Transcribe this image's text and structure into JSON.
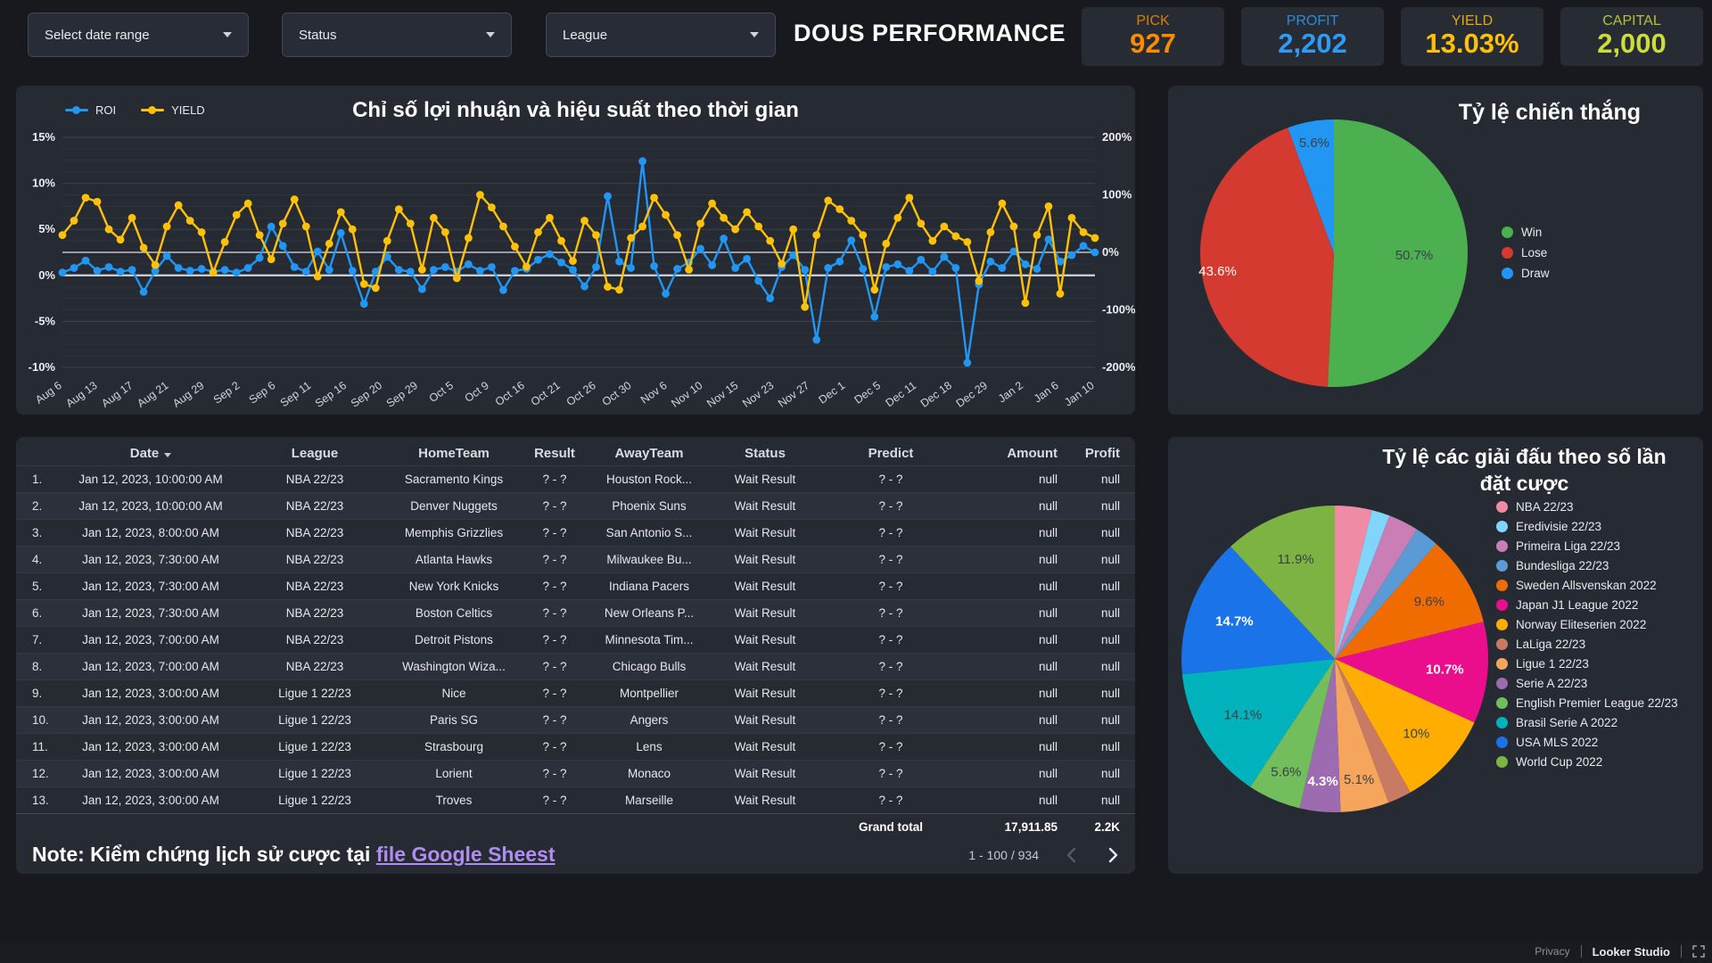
{
  "filters": [
    {
      "label": "Select date range"
    },
    {
      "label": "Status"
    },
    {
      "label": "League"
    }
  ],
  "header": {
    "title": "DOUS PERFORMANCE"
  },
  "kpis": [
    {
      "label": "PICK",
      "value": "927",
      "color": "#FB8C00"
    },
    {
      "label": "PROFIT",
      "value": "2,202",
      "color": "#2E9BF5"
    },
    {
      "label": "YIELD",
      "value": "13.03%",
      "color": "#FFC107"
    },
    {
      "label": "CAPITAL",
      "value": "2,000",
      "color": "#CDDC39"
    }
  ],
  "chart_data": [
    {
      "type": "line",
      "title": "Chỉ số lợi nhuận và hiệu suất theo thời gian",
      "legend_position": "top-left",
      "grid": true,
      "x_tick_labels": [
        "Aug 6",
        "Aug 13",
        "Aug 17",
        "Aug 21",
        "Aug 29",
        "Sep 2",
        "Sep 6",
        "Sep 11",
        "Sep 16",
        "Sep 20",
        "Sep 29",
        "Oct 5",
        "Oct 9",
        "Oct 16",
        "Oct 21",
        "Oct 26",
        "Oct 30",
        "Nov 6",
        "Nov 10",
        "Nov 15",
        "Nov 23",
        "Nov 27",
        "Dec 1",
        "Dec 5",
        "Dec 11",
        "Dec 18",
        "Dec 29",
        "Jan 2",
        "Jan 6",
        "Jan 10"
      ],
      "left_axis": {
        "ticks": [
          "15%",
          "10%",
          "5%",
          "0%",
          "-5%",
          "-10%"
        ],
        "tick_values": [
          15,
          10,
          5,
          0,
          -5,
          -10
        ],
        "min": -10,
        "max": 15
      },
      "right_axis": {
        "ticks": [
          "200%",
          "100%",
          "0%",
          "-100%",
          "-200%"
        ],
        "tick_values": [
          200,
          100,
          0,
          -100,
          -200
        ],
        "min": -200,
        "max": 200
      },
      "series": [
        {
          "name": "ROI",
          "axis": "left",
          "color": "#2196F3",
          "values": [
            0.3,
            0.8,
            1.6,
            0.5,
            0.9,
            0.4,
            0.6,
            -1.8,
            0.5,
            2.1,
            0.8,
            0.5,
            0.7,
            0.4,
            0.6,
            0.3,
            0.8,
            1.9,
            5.3,
            3.2,
            0.9,
            0.4,
            2.6,
            0.6,
            4.6,
            0.5,
            -3.1,
            0.4,
            2.0,
            0.6,
            0.4,
            -1.5,
            0.6,
            0.9,
            0.4,
            1.2,
            0.5,
            0.9,
            -1.6,
            0.5,
            0.7,
            1.7,
            2.3,
            1.4,
            0.6,
            -1.2,
            0.9,
            8.6,
            1.5,
            0.8,
            12.4,
            1.0,
            -2.0,
            0.7,
            1.4,
            2.9,
            1.1,
            4.0,
            0.8,
            1.8,
            -0.6,
            -2.5,
            0.9,
            2.2,
            0.6,
            -7.0,
            0.8,
            1.5,
            3.8,
            0.7,
            -4.5,
            0.9,
            1.2,
            0.5,
            1.7,
            0.4,
            2.0,
            0.8,
            -9.5,
            -1.0,
            1.5,
            0.8,
            2.6,
            1.2,
            0.7,
            3.9,
            1.5,
            2.2,
            3.2,
            2.5
          ]
        },
        {
          "name": "YIELD",
          "axis": "right",
          "color": "#FFC107",
          "values": [
            30,
            55,
            95,
            88,
            40,
            22,
            60,
            8,
            -22,
            45,
            82,
            55,
            35,
            -35,
            18,
            65,
            85,
            30,
            -12,
            50,
            92,
            45,
            -42,
            15,
            70,
            40,
            -55,
            -62,
            20,
            75,
            50,
            -30,
            60,
            35,
            -45,
            25,
            100,
            78,
            45,
            10,
            -25,
            35,
            60,
            20,
            -15,
            55,
            30,
            -60,
            -65,
            25,
            45,
            95,
            65,
            30,
            -30,
            50,
            85,
            60,
            40,
            70,
            45,
            20,
            -20,
            40,
            -95,
            30,
            90,
            75,
            55,
            30,
            -65,
            15,
            60,
            95,
            50,
            20,
            45,
            28,
            18,
            -50,
            35,
            85,
            45,
            -88,
            30,
            80,
            -72,
            60,
            35,
            25
          ]
        }
      ]
    },
    {
      "type": "pie",
      "title": "Tỷ lệ chiến thắng",
      "legend_position": "right",
      "slices": [
        {
          "label": "Win",
          "value": 50.7,
          "color": "#4CAF50",
          "pct_label": "50.7%",
          "label_color": "#3c4048",
          "label_bold": false,
          "label_r": 0.6
        },
        {
          "label": "Lose",
          "value": 43.6,
          "color": "#D43A2F",
          "pct_label": "43.6%",
          "label_color": "#ffffff",
          "label_bold": false,
          "label_r": 0.88
        },
        {
          "label": "Draw",
          "value": 5.6,
          "color": "#2196F3",
          "pct_label": "5.6%",
          "label_color": "#3c4048",
          "label_bold": false,
          "label_r": 0.84
        }
      ]
    },
    {
      "type": "pie",
      "title": "Tỷ lệ các giải đấu theo số lần đặt cược",
      "legend_position": "right",
      "slices": [
        {
          "label": "NBA 22/23",
          "value": 3.9,
          "color": "#F08BA5",
          "pct_label": "",
          "label_color": "#3c4048",
          "label_bold": false,
          "label_r": 0.75
        },
        {
          "label": "Eredivisie 22/23",
          "value": 1.9,
          "color": "#81D4FA",
          "pct_label": "",
          "label_color": "#3c4048",
          "label_bold": false,
          "label_r": 0.75
        },
        {
          "label": "Primeira Liga 22/23",
          "value": 3.2,
          "color": "#C97FB5",
          "pct_label": "",
          "label_color": "#3c4048",
          "label_bold": false,
          "label_r": 0.75
        },
        {
          "label": "Bundesliga 22/23",
          "value": 2.5,
          "color": "#5B9BD5",
          "pct_label": "",
          "label_color": "#3c4048",
          "label_bold": false,
          "label_r": 0.75
        },
        {
          "label": "Sweden Allsvenskan 2022",
          "value": 9.6,
          "color": "#F06C00",
          "pct_label": "9.6%",
          "label_color": "#3c4048",
          "label_bold": false,
          "label_r": 0.72
        },
        {
          "label": "Japan J1 League 2022",
          "value": 10.7,
          "color": "#EB0E8C",
          "pct_label": "10.7%",
          "label_color": "#ffffff",
          "label_bold": true,
          "label_r": 0.72
        },
        {
          "label": "Norway Eliteserien 2022",
          "value": 10.0,
          "color": "#FFAE00",
          "pct_label": "10%",
          "label_color": "#3c4048",
          "label_bold": false,
          "label_r": 0.72
        },
        {
          "label": "LaLiga 22/23",
          "value": 2.5,
          "color": "#C97A63",
          "pct_label": "",
          "label_color": "#3c4048",
          "label_bold": false,
          "label_r": 0.75
        },
        {
          "label": "Ligue 1 22/23",
          "value": 5.1,
          "color": "#F6A55C",
          "pct_label": "5.1%",
          "label_color": "#3c4048",
          "label_bold": false,
          "label_r": 0.8
        },
        {
          "label": "Serie A 22/23",
          "value": 4.3,
          "color": "#9D6BB0",
          "pct_label": "4.3%",
          "label_color": "#ffffff",
          "label_bold": true,
          "label_r": 0.8
        },
        {
          "label": "English Premier League 22/23",
          "value": 5.6,
          "color": "#72BE5C",
          "pct_label": "5.6%",
          "label_color": "#3c4048",
          "label_bold": false,
          "label_r": 0.8
        },
        {
          "label": "Brasil Serie A 2022",
          "value": 14.1,
          "color": "#00B2BC",
          "pct_label": "14.1%",
          "label_color": "#3c4048",
          "label_bold": false,
          "label_r": 0.7
        },
        {
          "label": "USA MLS 2022",
          "value": 14.7,
          "color": "#1A73E8",
          "pct_label": "14.7%",
          "label_color": "#ffffff",
          "label_bold": true,
          "label_r": 0.7
        },
        {
          "label": "World Cup 2022",
          "value": 11.9,
          "color": "#7CB342",
          "pct_label": "11.9%",
          "label_color": "#3c4048",
          "label_bold": false,
          "label_r": 0.7
        }
      ]
    }
  ],
  "table": {
    "headers": [
      "",
      "Date",
      "League",
      "HomeTeam",
      "Result",
      "AwayTeam",
      "Status",
      "Predict",
      "Amount",
      "Profit"
    ],
    "rows": [
      [
        "1.",
        "Jan 12, 2023, 10:00:00 AM",
        "NBA 22/23",
        "Sacramento Kings",
        "? - ?",
        "Houston Rock...",
        "Wait Result",
        "? - ?",
        "null",
        "null"
      ],
      [
        "2.",
        "Jan 12, 2023, 10:00:00 AM",
        "NBA 22/23",
        "Denver Nuggets",
        "? - ?",
        "Phoenix Suns",
        "Wait Result",
        "? - ?",
        "null",
        "null"
      ],
      [
        "3.",
        "Jan 12, 2023, 8:00:00 AM",
        "NBA 22/23",
        "Memphis Grizzlies",
        "? - ?",
        "San Antonio S...",
        "Wait Result",
        "? - ?",
        "null",
        "null"
      ],
      [
        "4.",
        "Jan 12, 2023, 7:30:00 AM",
        "NBA 22/23",
        "Atlanta Hawks",
        "? - ?",
        "Milwaukee Bu...",
        "Wait Result",
        "? - ?",
        "null",
        "null"
      ],
      [
        "5.",
        "Jan 12, 2023, 7:30:00 AM",
        "NBA 22/23",
        "New York Knicks",
        "? - ?",
        "Indiana Pacers",
        "Wait Result",
        "? - ?",
        "null",
        "null"
      ],
      [
        "6.",
        "Jan 12, 2023, 7:30:00 AM",
        "NBA 22/23",
        "Boston Celtics",
        "? - ?",
        "New Orleans P...",
        "Wait Result",
        "? - ?",
        "null",
        "null"
      ],
      [
        "7.",
        "Jan 12, 2023, 7:00:00 AM",
        "NBA 22/23",
        "Detroit Pistons",
        "? - ?",
        "Minnesota Tim...",
        "Wait Result",
        "? - ?",
        "null",
        "null"
      ],
      [
        "8.",
        "Jan 12, 2023, 7:00:00 AM",
        "NBA 22/23",
        "Washington Wiza...",
        "? - ?",
        "Chicago Bulls",
        "Wait Result",
        "? - ?",
        "null",
        "null"
      ],
      [
        "9.",
        "Jan 12, 2023, 3:00:00 AM",
        "Ligue 1 22/23",
        "Nice",
        "? - ?",
        "Montpellier",
        "Wait Result",
        "? - ?",
        "null",
        "null"
      ],
      [
        "10.",
        "Jan 12, 2023, 3:00:00 AM",
        "Ligue 1 22/23",
        "Paris SG",
        "? - ?",
        "Angers",
        "Wait Result",
        "? - ?",
        "null",
        "null"
      ],
      [
        "11.",
        "Jan 12, 2023, 3:00:00 AM",
        "Ligue 1 22/23",
        "Strasbourg",
        "? - ?",
        "Lens",
        "Wait Result",
        "? - ?",
        "null",
        "null"
      ],
      [
        "12.",
        "Jan 12, 2023, 3:00:00 AM",
        "Ligue 1 22/23",
        "Lorient",
        "? - ?",
        "Monaco",
        "Wait Result",
        "? - ?",
        "null",
        "null"
      ],
      [
        "13.",
        "Jan 12, 2023, 3:00:00 AM",
        "Ligue 1 22/23",
        "Troves",
        "? - ?",
        "Marseille",
        "Wait Result",
        "? - ?",
        "null",
        "null"
      ]
    ],
    "grand_total": {
      "label": "Grand total",
      "amount": "17,911.85",
      "profit": "2.2K"
    },
    "pagination": {
      "range": "1 - 100 / 934"
    }
  },
  "note": {
    "prefix": "Note: Kiểm chứng lịch sử cược tại ",
    "link_text": "file Google Sheest"
  },
  "footer": {
    "privacy": "Privacy",
    "brand": "Looker Studio"
  }
}
